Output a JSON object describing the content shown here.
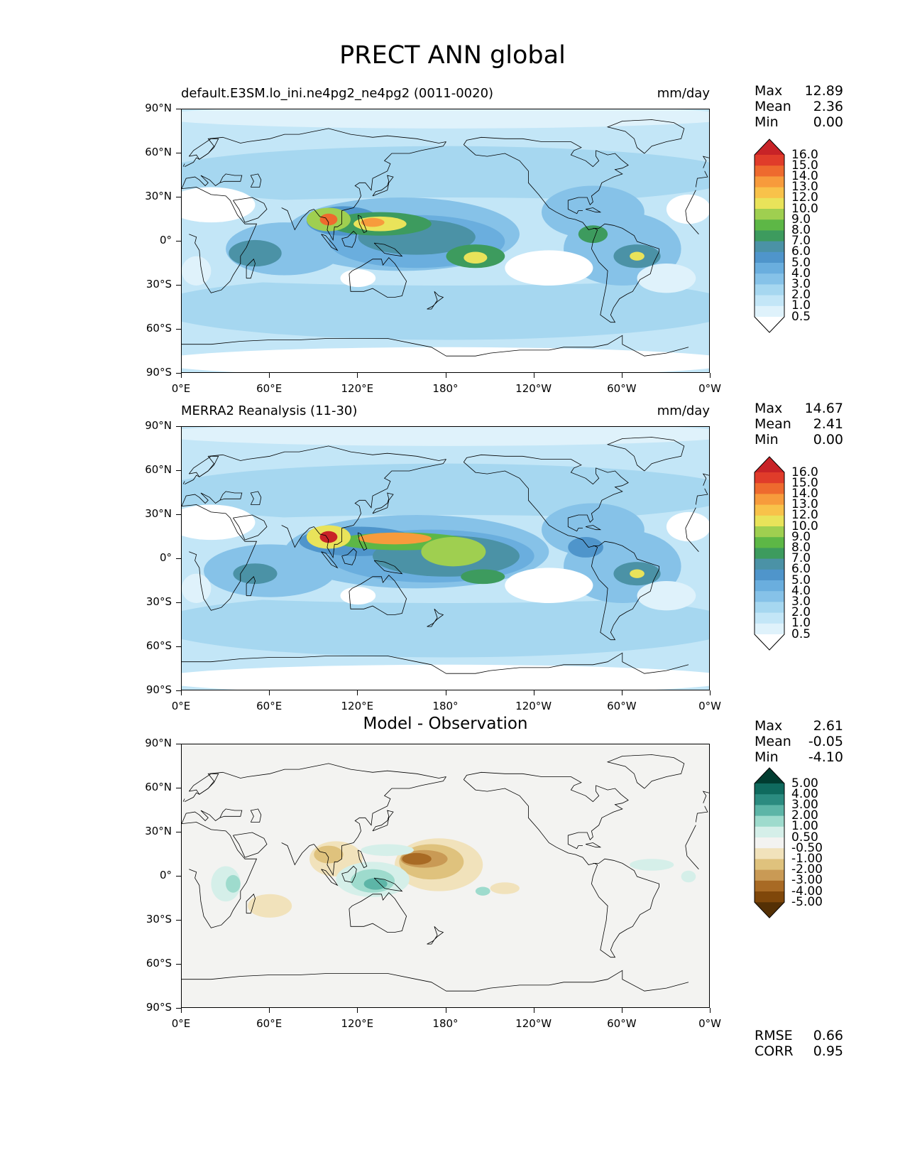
{
  "figure": {
    "title": "PRECT ANN global"
  },
  "axes": {
    "y_ticks": [
      "90°N",
      "60°N",
      "30°N",
      "0°",
      "30°S",
      "60°S",
      "90°S"
    ],
    "x_ticks": [
      "0°E",
      "60°E",
      "120°E",
      "180°",
      "120°W",
      "60°W",
      "0°W"
    ]
  },
  "panels": [
    {
      "title_left": "default.E3SM.lo_ini.ne4pg2_ne4pg2 (0011-0020)",
      "title_right": "mm/day",
      "stats": {
        "max_label": "Max",
        "max": "12.89",
        "mean_label": "Mean",
        "mean": "2.36",
        "min_label": "Min",
        "min": "0.00"
      },
      "colorbar_ticks": [
        "16.0",
        "15.0",
        "14.0",
        "13.0",
        "12.0",
        "10.0",
        "9.0",
        "8.0",
        "7.0",
        "6.0",
        "5.0",
        "4.0",
        "3.0",
        "2.0",
        "1.0",
        "0.5"
      ]
    },
    {
      "title_left": "MERRA2 Reanalysis (11-30)",
      "title_right": "mm/day",
      "stats": {
        "max_label": "Max",
        "max": "14.67",
        "mean_label": "Mean",
        "mean": "2.41",
        "min_label": "Min",
        "min": "0.00"
      },
      "colorbar_ticks": [
        "16.0",
        "15.0",
        "14.0",
        "13.0",
        "12.0",
        "10.0",
        "9.0",
        "8.0",
        "7.0",
        "6.0",
        "5.0",
        "4.0",
        "3.0",
        "2.0",
        "1.0",
        "0.5"
      ]
    },
    {
      "title_center": "Model - Observation",
      "stats": {
        "max_label": "Max",
        "max": "2.61",
        "mean_label": "Mean",
        "mean": "-0.05",
        "min_label": "Min",
        "min": "-4.10"
      },
      "colorbar_ticks": [
        "5.00",
        "4.00",
        "3.00",
        "2.00",
        "1.00",
        "0.50",
        "-0.50",
        "-1.00",
        "-2.00",
        "-3.00",
        "-4.00",
        "-5.00"
      ],
      "metrics": {
        "rmse_label": "RMSE",
        "rmse": "0.66",
        "corr_label": "CORR",
        "corr": "0.95"
      }
    }
  ],
  "colormaps": {
    "precip": [
      "#ffffff",
      "#dff2fb",
      "#c3e6f7",
      "#a6d7f0",
      "#86c2e8",
      "#6aaede",
      "#4f95cb",
      "#4b92a6",
      "#3d9b5e",
      "#5db746",
      "#9fcf50",
      "#e9e35a",
      "#f8c24a",
      "#f79b3c",
      "#ee6a2e",
      "#e03c2a",
      "#c82327",
      "#a11b1e",
      "#85141a"
    ],
    "diff": [
      "#543005",
      "#7f470a",
      "#a86a24",
      "#c99a55",
      "#dfc27d",
      "#f1e2bb",
      "#f3f3f1",
      "#d5efe9",
      "#9edbcd",
      "#5db5a7",
      "#2b8b80",
      "#0f6a5e",
      "#003c30"
    ]
  },
  "chart_data": [
    {
      "type": "heatmap",
      "title": "default.E3SM.lo_ini.ne4pg2_ne4pg2 (0011-0020)",
      "units": "mm/day",
      "xlim": [
        0,
        360
      ],
      "ylim": [
        -90,
        90
      ],
      "levels": [
        0.5,
        1,
        2,
        3,
        4,
        5,
        6,
        7,
        8,
        9,
        10,
        12,
        13,
        14,
        15,
        16
      ],
      "max": 12.89,
      "mean": 2.36,
      "min": 0.0,
      "features": [
        {
          "lon": 100,
          "lat": 15,
          "value": 12
        },
        {
          "lon": 125,
          "lat": 13,
          "value": 10
        },
        {
          "lon": 150,
          "lat": 12,
          "value": 8
        },
        {
          "lon": 160,
          "lat": 0,
          "value": 6
        },
        {
          "lon": 205,
          "lat": -10,
          "value": 9
        },
        {
          "lon": 50,
          "lat": -8,
          "value": 7
        },
        {
          "lon": 310,
          "lat": -10,
          "value": 8
        },
        {
          "lon": 280,
          "lat": 5,
          "value": 6
        },
        {
          "lon": 240,
          "lat": -20,
          "value": 0.5
        },
        {
          "lon": 0,
          "lat": 25,
          "value": 0.5
        }
      ]
    },
    {
      "type": "heatmap",
      "title": "MERRA2 Reanalysis (11-30)",
      "units": "mm/day",
      "xlim": [
        0,
        360
      ],
      "ylim": [
        -90,
        90
      ],
      "levels": [
        0.5,
        1,
        2,
        3,
        4,
        5,
        6,
        7,
        8,
        9,
        10,
        12,
        13,
        14,
        15,
        16
      ],
      "max": 14.67,
      "mean": 2.41,
      "min": 0.0,
      "features": [
        {
          "lon": 100,
          "lat": 15,
          "value": 14
        },
        {
          "lon": 150,
          "lat": 12,
          "value": 12
        },
        {
          "lon": 185,
          "lat": 5,
          "value": 9
        },
        {
          "lon": 205,
          "lat": -12,
          "value": 7
        },
        {
          "lon": 45,
          "lat": -10,
          "value": 6
        },
        {
          "lon": 310,
          "lat": -10,
          "value": 8
        },
        {
          "lon": 275,
          "lat": 8,
          "value": 5
        },
        {
          "lon": 240,
          "lat": -20,
          "value": 0.5
        },
        {
          "lon": 0,
          "lat": 25,
          "value": 0.5
        }
      ]
    },
    {
      "type": "heatmap",
      "title": "Model - Observation",
      "xlim": [
        0,
        360
      ],
      "ylim": [
        -90,
        90
      ],
      "levels": [
        -5,
        -4,
        -3,
        -2,
        -1,
        -0.5,
        0.5,
        1,
        2,
        3,
        4,
        5
      ],
      "max": 2.61,
      "mean": -0.05,
      "min": -4.1,
      "rmse": 0.66,
      "corr": 0.95,
      "features": [
        {
          "lon": 170,
          "lat": 10,
          "value": -4
        },
        {
          "lon": 100,
          "lat": 15,
          "value": -1.5
        },
        {
          "lon": 130,
          "lat": -3,
          "value": 2.5
        },
        {
          "lon": 140,
          "lat": 18,
          "value": 1
        },
        {
          "lon": 35,
          "lat": -5,
          "value": 1
        },
        {
          "lon": 205,
          "lat": -10,
          "value": 1
        },
        {
          "lon": 60,
          "lat": -20,
          "value": -0.5
        },
        {
          "lon": 320,
          "lat": 5,
          "value": 0.8
        }
      ]
    }
  ]
}
